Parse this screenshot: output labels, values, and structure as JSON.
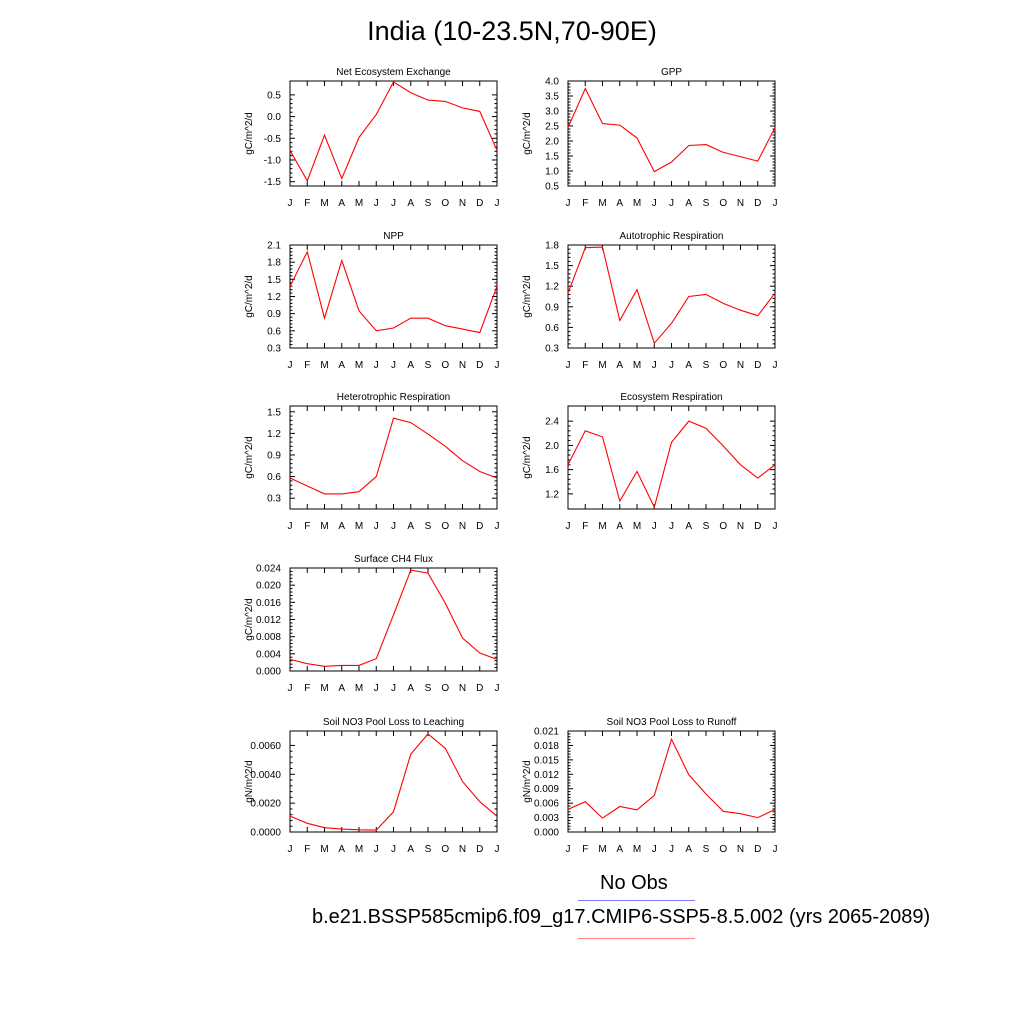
{
  "title": "India (10-23.5N,70-90E)",
  "months": [
    "J",
    "F",
    "M",
    "A",
    "M",
    "J",
    "J",
    "A",
    "S",
    "O",
    "N",
    "D",
    "J"
  ],
  "colors": {
    "series": "#ff0000",
    "obs_line": "#8080ff",
    "case_line": "#ff8080"
  },
  "legend": {
    "obs_label": "No Obs",
    "case_label": "b.e21.BSSP585cmip6.f09_g17.CMIP6-SSP5-8.5.002 (yrs 2065-2089)"
  },
  "chart_data": [
    {
      "type": "line",
      "title": "Net Ecosystem Exchange",
      "ylabel": "gC/m^2/d",
      "ylim": [
        -1.6,
        0.82
      ],
      "yticks": [
        -1.5,
        -1.0,
        -0.5,
        0.0,
        0.5
      ],
      "yticklabels": [
        "-1.5",
        "-1.0",
        "-0.5",
        "0.0",
        "0.5"
      ],
      "x": [
        "J",
        "F",
        "M",
        "A",
        "M",
        "J",
        "J",
        "A",
        "S",
        "O",
        "N",
        "D",
        "J"
      ],
      "values": [
        -0.78,
        -1.48,
        -0.43,
        -1.43,
        -0.48,
        0.05,
        0.8,
        0.55,
        0.38,
        0.35,
        0.2,
        0.12,
        -0.78
      ]
    },
    {
      "type": "line",
      "title": "GPP",
      "ylabel": "gC/m^2/d",
      "ylim": [
        0.5,
        4.0
      ],
      "yticks": [
        0.5,
        1.0,
        1.5,
        2.0,
        2.5,
        3.0,
        3.5,
        4.0
      ],
      "yticklabels": [
        "0.5",
        "1.0",
        "1.5",
        "2.0",
        "2.5",
        "3.0",
        "3.5",
        "4.0"
      ],
      "x": [
        "J",
        "F",
        "M",
        "A",
        "M",
        "J",
        "J",
        "A",
        "S",
        "O",
        "N",
        "D",
        "J"
      ],
      "values": [
        2.45,
        3.75,
        2.58,
        2.53,
        2.1,
        0.98,
        1.3,
        1.85,
        1.88,
        1.62,
        1.48,
        1.33,
        2.45
      ]
    },
    {
      "type": "line",
      "title": "NPP",
      "ylabel": "gC/m^2/d",
      "ylim": [
        0.3,
        2.1
      ],
      "yticks": [
        0.3,
        0.6,
        0.9,
        1.2,
        1.5,
        1.8,
        2.1
      ],
      "yticklabels": [
        "0.3",
        "0.6",
        "0.9",
        "1.2",
        "1.5",
        "1.8",
        "2.1"
      ],
      "x": [
        "J",
        "F",
        "M",
        "A",
        "M",
        "J",
        "J",
        "A",
        "S",
        "O",
        "N",
        "D",
        "J"
      ],
      "values": [
        1.38,
        1.98,
        0.82,
        1.83,
        0.95,
        0.6,
        0.65,
        0.82,
        0.82,
        0.69,
        0.63,
        0.57,
        1.38
      ]
    },
    {
      "type": "line",
      "title": "Autotrophic Respiration",
      "ylabel": "gC/m^2/d",
      "ylim": [
        0.3,
        1.8
      ],
      "yticks": [
        0.3,
        0.6,
        0.9,
        1.2,
        1.5,
        1.8
      ],
      "yticklabels": [
        "0.3",
        "0.6",
        "0.9",
        "1.2",
        "1.5",
        "1.8"
      ],
      "x": [
        "J",
        "F",
        "M",
        "A",
        "M",
        "J",
        "J",
        "A",
        "S",
        "O",
        "N",
        "D",
        "J"
      ],
      "values": [
        1.1,
        1.76,
        1.77,
        0.7,
        1.15,
        0.37,
        0.66,
        1.05,
        1.08,
        0.95,
        0.85,
        0.77,
        1.1
      ]
    },
    {
      "type": "line",
      "title": "Heterotrophic Respiration",
      "ylabel": "gC/m^2/d",
      "ylim": [
        0.15,
        1.58
      ],
      "yticks": [
        0.3,
        0.6,
        0.9,
        1.2,
        1.5
      ],
      "yticklabels": [
        "0.3",
        "0.6",
        "0.9",
        "1.2",
        "1.5"
      ],
      "x": [
        "J",
        "F",
        "M",
        "A",
        "M",
        "J",
        "J",
        "A",
        "S",
        "O",
        "N",
        "D",
        "J"
      ],
      "values": [
        0.58,
        0.47,
        0.36,
        0.36,
        0.39,
        0.6,
        1.41,
        1.35,
        1.19,
        1.02,
        0.82,
        0.67,
        0.58
      ]
    },
    {
      "type": "line",
      "title": "Ecosystem Respiration",
      "ylabel": "gC/m^2/d",
      "ylim": [
        0.95,
        2.65
      ],
      "yticks": [
        1.2,
        1.6,
        2.0,
        2.4
      ],
      "yticklabels": [
        "1.2",
        "1.6",
        "2.0",
        "2.4"
      ],
      "x": [
        "J",
        "F",
        "M",
        "A",
        "M",
        "J",
        "J",
        "A",
        "S",
        "O",
        "N",
        "D",
        "J"
      ],
      "values": [
        1.68,
        2.24,
        2.14,
        1.08,
        1.57,
        0.98,
        2.05,
        2.4,
        2.28,
        1.99,
        1.68,
        1.46,
        1.68
      ]
    },
    {
      "type": "line",
      "title": "Surface CH4 Flux",
      "ylabel": "gC/m^2/d",
      "ylim": [
        0.0,
        0.024
      ],
      "yticks": [
        0.0,
        0.004,
        0.008,
        0.012,
        0.016,
        0.02,
        0.024
      ],
      "yticklabels": [
        "0.000",
        "0.004",
        "0.008",
        "0.012",
        "0.016",
        "0.020",
        "0.024"
      ],
      "x": [
        "J",
        "F",
        "M",
        "A",
        "M",
        "J",
        "J",
        "A",
        "S",
        "O",
        "N",
        "D",
        "J"
      ],
      "values": [
        0.0027,
        0.0017,
        0.0011,
        0.0013,
        0.0013,
        0.0029,
        0.0131,
        0.0235,
        0.0228,
        0.0158,
        0.0077,
        0.0042,
        0.0027
      ]
    },
    {
      "type": "line",
      "title": "Soil NO3 Pool Loss to Leaching",
      "ylabel": "gN/m^2/d",
      "ylim": [
        0.0,
        0.007
      ],
      "yticks": [
        0.0,
        0.002,
        0.004,
        0.006
      ],
      "yticklabels": [
        "0.0000",
        "0.0020",
        "0.0040",
        "0.0060"
      ],
      "x": [
        "J",
        "F",
        "M",
        "A",
        "M",
        "J",
        "J",
        "A",
        "S",
        "O",
        "N",
        "D",
        "J"
      ],
      "values": [
        0.0011,
        0.0006,
        0.0003,
        0.0002,
        0.00015,
        0.00013,
        0.0014,
        0.0054,
        0.0068,
        0.0058,
        0.0035,
        0.0021,
        0.0011
      ]
    },
    {
      "type": "line",
      "title": "Soil NO3 Pool Loss to Runoff",
      "ylabel": "gN/m^2/d",
      "ylim": [
        0.0,
        0.021
      ],
      "yticks": [
        0.0,
        0.003,
        0.006,
        0.009,
        0.012,
        0.015,
        0.018,
        0.021
      ],
      "yticklabels": [
        "0.000",
        "0.003",
        "0.006",
        "0.009",
        "0.012",
        "0.015",
        "0.018",
        "0.021"
      ],
      "x": [
        "J",
        "F",
        "M",
        "A",
        "M",
        "J",
        "J",
        "A",
        "S",
        "O",
        "N",
        "D",
        "J"
      ],
      "values": [
        0.0047,
        0.0063,
        0.0029,
        0.0053,
        0.0046,
        0.0076,
        0.0193,
        0.0119,
        0.0079,
        0.0043,
        0.0038,
        0.003,
        0.0047
      ]
    }
  ]
}
